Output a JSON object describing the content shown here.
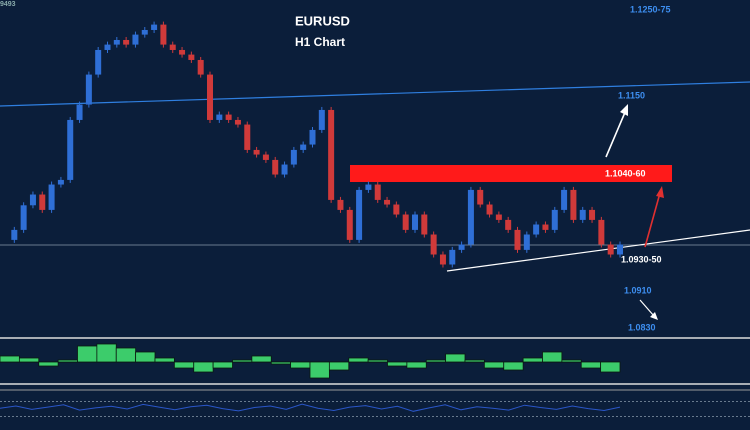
{
  "header_fragment": "9493",
  "chart_data": [
    {
      "type": "candlestick",
      "title": "EURUSD",
      "subtitle": "H1 Chart",
      "ylim": [
        1.0843,
        1.128
      ],
      "values": [
        1.0968,
        1.0981,
        1.1013,
        1.1027,
        1.1007,
        1.104,
        1.1046,
        1.1124,
        1.1144,
        1.1183,
        1.1215,
        1.1222,
        1.1228,
        1.1222,
        1.1235,
        1.1241,
        1.1248,
        1.1222,
        1.1215,
        1.1209,
        1.1202,
        1.1183,
        1.1124,
        1.1131,
        1.1124,
        1.1118,
        1.1085,
        1.1079,
        1.1072,
        1.1053,
        1.1066,
        1.1085,
        1.1092,
        1.1111,
        1.1137,
        1.102,
        1.1007,
        1.0968,
        1.1033,
        1.104,
        1.102,
        1.1014,
        1.1001,
        1.0981,
        1.1001,
        1.0975,
        1.0949,
        1.0936,
        1.0955,
        1.0962,
        1.1033,
        1.1014,
        1.1001,
        1.0994,
        1.0981,
        1.0955,
        1.0975,
        1.0988,
        1.0981,
        1.1007,
        1.1033,
        1.0994,
        1.1007,
        1.0994,
        1.0962,
        1.0949,
        1.0962
      ],
      "up_color": "#2f6fd6",
      "down_color": "#d03a3a",
      "annotations": [
        "1.1250-75",
        "1.1150",
        "1.1040-60",
        "1.0930-50",
        "1.0910",
        "1.0830"
      ]
    },
    {
      "type": "histogram",
      "ylim": [
        -1,
        1
      ],
      "color": "#3ccc6b",
      "values": [
        0.3,
        0.2,
        -0.2,
        0.1,
        0.8,
        0.9,
        0.7,
        0.5,
        0.2,
        -0.3,
        -0.5,
        -0.3,
        0.1,
        0.3,
        -0.1,
        -0.3,
        -0.8,
        -0.4,
        0.2,
        0.1,
        -0.2,
        -0.3,
        0.1,
        0.4,
        0.1,
        -0.3,
        -0.4,
        0.2,
        0.5,
        0.1,
        -0.3,
        -0.5
      ]
    },
    {
      "type": "line",
      "ylim": [
        0,
        100
      ],
      "color": "#2a56c8",
      "levels": [
        70,
        30
      ],
      "values": [
        52,
        58,
        49,
        55,
        61,
        47,
        53,
        57,
        50,
        62,
        55,
        48,
        56,
        60,
        51,
        45,
        54,
        58,
        49,
        63,
        52,
        46,
        55,
        59,
        50,
        57,
        44,
        53,
        61,
        48,
        56,
        52,
        47,
        60,
        54,
        49,
        58,
        51,
        46,
        55
      ]
    }
  ]
}
